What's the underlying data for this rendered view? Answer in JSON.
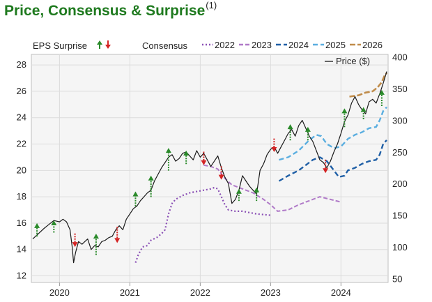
{
  "header": {
    "title": "Price, Consensus & Surprise",
    "superscript": "(1)"
  },
  "chart_data": {
    "type": "line",
    "x_ticks": [
      "2020",
      "2021",
      "2022",
      "2023",
      "2024"
    ],
    "y_left_ticks": [
      "12",
      "14",
      "16",
      "18",
      "20",
      "22",
      "24",
      "26",
      "28"
    ],
    "y_right_ticks": [
      "50",
      "100",
      "150",
      "200",
      "250",
      "300",
      "350",
      "400"
    ],
    "ylim_left": [
      11.5,
      28.8
    ],
    "ylim_right": [
      45,
      405
    ],
    "grid": true,
    "legend": {
      "eps_surprise": "EPS Surprise",
      "consensus": "Consensus",
      "price": "Price ($)",
      "series_labels": [
        "2022",
        "2023",
        "2024",
        "2025",
        "2026"
      ]
    },
    "colors": {
      "2022": "#8a4fb5",
      "2023": "#b07ac8",
      "2024": "#1f5fa6",
      "2025": "#5aaee0",
      "2026": "#c08c4a",
      "price": "#1a1a1a",
      "up": "#2a8a2a",
      "down": "#d42424"
    },
    "series": [
      {
        "key": "2022",
        "points": [
          [
            2021.08,
            13.0
          ],
          [
            2021.12,
            13.6
          ],
          [
            2021.18,
            14.2
          ],
          [
            2021.25,
            14.3
          ],
          [
            2021.3,
            14.7
          ],
          [
            2021.38,
            14.9
          ],
          [
            2021.45,
            15.2
          ],
          [
            2021.5,
            15.5
          ],
          [
            2021.55,
            16.7
          ],
          [
            2021.6,
            17.5
          ],
          [
            2021.65,
            17.8
          ],
          [
            2021.75,
            18.1
          ],
          [
            2021.85,
            18.3
          ],
          [
            2021.95,
            18.4
          ],
          [
            2022.05,
            18.5
          ],
          [
            2022.15,
            18.6
          ],
          [
            2022.2,
            18.7
          ],
          [
            2022.25,
            18.6
          ],
          [
            2022.3,
            18.0
          ],
          [
            2022.35,
            17.4
          ],
          [
            2022.4,
            17.0
          ],
          [
            2022.5,
            16.9
          ],
          [
            2022.6,
            16.9
          ],
          [
            2022.8,
            16.7
          ],
          [
            2023.0,
            16.6
          ]
        ]
      },
      {
        "key": "2023",
        "points": [
          [
            2022.05,
            20.4
          ],
          [
            2022.15,
            20.3
          ],
          [
            2022.25,
            20.1
          ],
          [
            2022.35,
            19.4
          ],
          [
            2022.45,
            18.9
          ],
          [
            2022.6,
            18.6
          ],
          [
            2022.75,
            18.3
          ],
          [
            2022.9,
            17.8
          ],
          [
            2023.0,
            17.4
          ],
          [
            2023.1,
            16.9
          ],
          [
            2023.25,
            17.0
          ],
          [
            2023.4,
            17.4
          ],
          [
            2023.55,
            17.7
          ],
          [
            2023.7,
            18.0
          ],
          [
            2023.85,
            17.8
          ],
          [
            2024.0,
            17.6
          ]
        ]
      },
      {
        "key": "2024",
        "points": [
          [
            2023.12,
            19.2
          ],
          [
            2023.25,
            19.6
          ],
          [
            2023.4,
            20.0
          ],
          [
            2023.5,
            20.4
          ],
          [
            2023.6,
            20.8
          ],
          [
            2023.7,
            21.0
          ],
          [
            2023.8,
            20.7
          ],
          [
            2023.9,
            20.0
          ],
          [
            2023.97,
            19.5
          ],
          [
            2024.05,
            19.6
          ],
          [
            2024.1,
            20.0
          ],
          [
            2024.2,
            20.2
          ],
          [
            2024.3,
            20.5
          ],
          [
            2024.4,
            20.7
          ],
          [
            2024.5,
            20.8
          ],
          [
            2024.55,
            21.2
          ],
          [
            2024.6,
            22.0
          ],
          [
            2024.65,
            22.3
          ]
        ]
      },
      {
        "key": "2025",
        "points": [
          [
            2023.12,
            20.8
          ],
          [
            2023.25,
            21.0
          ],
          [
            2023.4,
            21.5
          ],
          [
            2023.55,
            22.3
          ],
          [
            2023.65,
            22.7
          ],
          [
            2023.72,
            22.6
          ],
          [
            2023.8,
            22.0
          ],
          [
            2023.9,
            21.7
          ],
          [
            2024.0,
            21.8
          ],
          [
            2024.1,
            22.4
          ],
          [
            2024.2,
            22.7
          ],
          [
            2024.3,
            22.9
          ],
          [
            2024.4,
            23.2
          ],
          [
            2024.5,
            23.3
          ],
          [
            2024.55,
            23.8
          ],
          [
            2024.6,
            24.5
          ],
          [
            2024.65,
            24.8
          ]
        ]
      },
      {
        "key": "2026",
        "points": [
          [
            2024.12,
            25.6
          ],
          [
            2024.25,
            25.7
          ],
          [
            2024.35,
            25.9
          ],
          [
            2024.45,
            26.0
          ],
          [
            2024.52,
            26.3
          ],
          [
            2024.58,
            26.7
          ],
          [
            2024.62,
            27.2
          ],
          [
            2024.65,
            27.4
          ]
        ]
      }
    ],
    "price": [
      [
        2019.62,
        14.8
      ],
      [
        2019.7,
        15.2
      ],
      [
        2019.78,
        15.6
      ],
      [
        2019.85,
        15.9
      ],
      [
        2019.92,
        16.2
      ],
      [
        2020.0,
        16.1
      ],
      [
        2020.05,
        16.3
      ],
      [
        2020.1,
        16.1
      ],
      [
        2020.15,
        15.5
      ],
      [
        2020.18,
        14.2
      ],
      [
        2020.2,
        13.0
      ],
      [
        2020.23,
        13.8
      ],
      [
        2020.27,
        14.6
      ],
      [
        2020.32,
        14.4
      ],
      [
        2020.4,
        14.8
      ],
      [
        2020.45,
        14.0
      ],
      [
        2020.5,
        14.3
      ],
      [
        2020.55,
        14.2
      ],
      [
        2020.6,
        14.6
      ],
      [
        2020.65,
        14.7
      ],
      [
        2020.7,
        14.9
      ],
      [
        2020.75,
        15.0
      ],
      [
        2020.8,
        15.5
      ],
      [
        2020.85,
        15.8
      ],
      [
        2020.9,
        15.5
      ],
      [
        2020.95,
        16.3
      ],
      [
        2021.0,
        16.7
      ],
      [
        2021.05,
        17.1
      ],
      [
        2021.1,
        17.3
      ],
      [
        2021.15,
        17.7
      ],
      [
        2021.2,
        18.0
      ],
      [
        2021.25,
        18.3
      ],
      [
        2021.3,
        18.5
      ],
      [
        2021.35,
        19.2
      ],
      [
        2021.4,
        19.7
      ],
      [
        2021.45,
        20.2
      ],
      [
        2021.5,
        20.6
      ],
      [
        2021.55,
        21.0
      ],
      [
        2021.6,
        21.2
      ],
      [
        2021.65,
        20.7
      ],
      [
        2021.7,
        20.9
      ],
      [
        2021.75,
        21.3
      ],
      [
        2021.8,
        21.4
      ],
      [
        2021.85,
        21.1
      ],
      [
        2021.9,
        20.8
      ],
      [
        2021.95,
        21.5
      ],
      [
        2022.0,
        21.0
      ],
      [
        2022.05,
        21.3
      ],
      [
        2022.1,
        20.8
      ],
      [
        2022.15,
        20.3
      ],
      [
        2022.2,
        20.7
      ],
      [
        2022.25,
        21.1
      ],
      [
        2022.3,
        20.2
      ],
      [
        2022.35,
        19.5
      ],
      [
        2022.4,
        19.0
      ],
      [
        2022.45,
        17.5
      ],
      [
        2022.5,
        17.8
      ],
      [
        2022.55,
        18.5
      ],
      [
        2022.6,
        19.6
      ],
      [
        2022.65,
        19.2
      ],
      [
        2022.7,
        18.8
      ],
      [
        2022.75,
        18.5
      ],
      [
        2022.8,
        18.2
      ],
      [
        2022.85,
        20.0
      ],
      [
        2022.9,
        20.5
      ],
      [
        2022.95,
        21.2
      ],
      [
        2023.0,
        21.6
      ],
      [
        2023.05,
        21.8
      ],
      [
        2023.1,
        21.3
      ],
      [
        2023.15,
        21.8
      ],
      [
        2023.2,
        22.3
      ],
      [
        2023.25,
        22.8
      ],
      [
        2023.3,
        23.1
      ],
      [
        2023.35,
        22.6
      ],
      [
        2023.4,
        23.4
      ],
      [
        2023.45,
        23.8
      ],
      [
        2023.5,
        23.2
      ],
      [
        2023.55,
        22.6
      ],
      [
        2023.6,
        22.2
      ],
      [
        2023.65,
        21.5
      ],
      [
        2023.7,
        20.8
      ],
      [
        2023.75,
        20.6
      ],
      [
        2023.8,
        20.2
      ],
      [
        2023.85,
        20.7
      ],
      [
        2023.9,
        21.4
      ],
      [
        2023.95,
        22.0
      ],
      [
        2024.0,
        22.8
      ],
      [
        2024.05,
        23.7
      ],
      [
        2024.1,
        24.2
      ],
      [
        2024.15,
        25.1
      ],
      [
        2024.2,
        25.6
      ],
      [
        2024.25,
        25.0
      ],
      [
        2024.3,
        24.6
      ],
      [
        2024.35,
        24.3
      ],
      [
        2024.4,
        25.2
      ],
      [
        2024.45,
        25.4
      ],
      [
        2024.5,
        25.1
      ],
      [
        2024.55,
        25.8
      ],
      [
        2024.6,
        26.6
      ],
      [
        2024.65,
        27.5
      ]
    ],
    "surprises": [
      {
        "x": 2019.68,
        "y": 15.3,
        "dir": "up",
        "len": 0.6
      },
      {
        "x": 2019.92,
        "y": 15.6,
        "dir": "up",
        "len": 0.5
      },
      {
        "x": 2020.22,
        "y": 14.9,
        "dir": "down",
        "len": 0.6
      },
      {
        "x": 2020.52,
        "y": 13.9,
        "dir": "up",
        "len": 1.2
      },
      {
        "x": 2020.82,
        "y": 15.4,
        "dir": "down",
        "len": 0.8
      },
      {
        "x": 2021.08,
        "y": 17.6,
        "dir": "up",
        "len": 0.7
      },
      {
        "x": 2021.3,
        "y": 18.3,
        "dir": "up",
        "len": 1.2
      },
      {
        "x": 2021.55,
        "y": 20.3,
        "dir": "up",
        "len": 1.3
      },
      {
        "x": 2021.8,
        "y": 20.8,
        "dir": "up",
        "len": 0.6
      },
      {
        "x": 2022.05,
        "y": 21.1,
        "dir": "down",
        "len": 0.6
      },
      {
        "x": 2022.3,
        "y": 20.0,
        "dir": "down",
        "len": 0.6
      },
      {
        "x": 2022.55,
        "y": 18.0,
        "dir": "up",
        "len": 0.5
      },
      {
        "x": 2022.8,
        "y": 18.0,
        "dir": "up",
        "len": 0.6
      },
      {
        "x": 2023.05,
        "y": 22.1,
        "dir": "down",
        "len": 0.6
      },
      {
        "x": 2023.28,
        "y": 22.6,
        "dir": "up",
        "len": 0.8
      },
      {
        "x": 2023.53,
        "y": 22.6,
        "dir": "up",
        "len": 0.6
      },
      {
        "x": 2023.78,
        "y": 20.5,
        "dir": "down",
        "len": 0.6
      },
      {
        "x": 2024.05,
        "y": 23.6,
        "dir": "up",
        "len": 1.0
      },
      {
        "x": 2024.32,
        "y": 24.2,
        "dir": "up",
        "len": 0.5
      },
      {
        "x": 2024.58,
        "y": 25.2,
        "dir": "up",
        "len": 0.8
      }
    ]
  }
}
